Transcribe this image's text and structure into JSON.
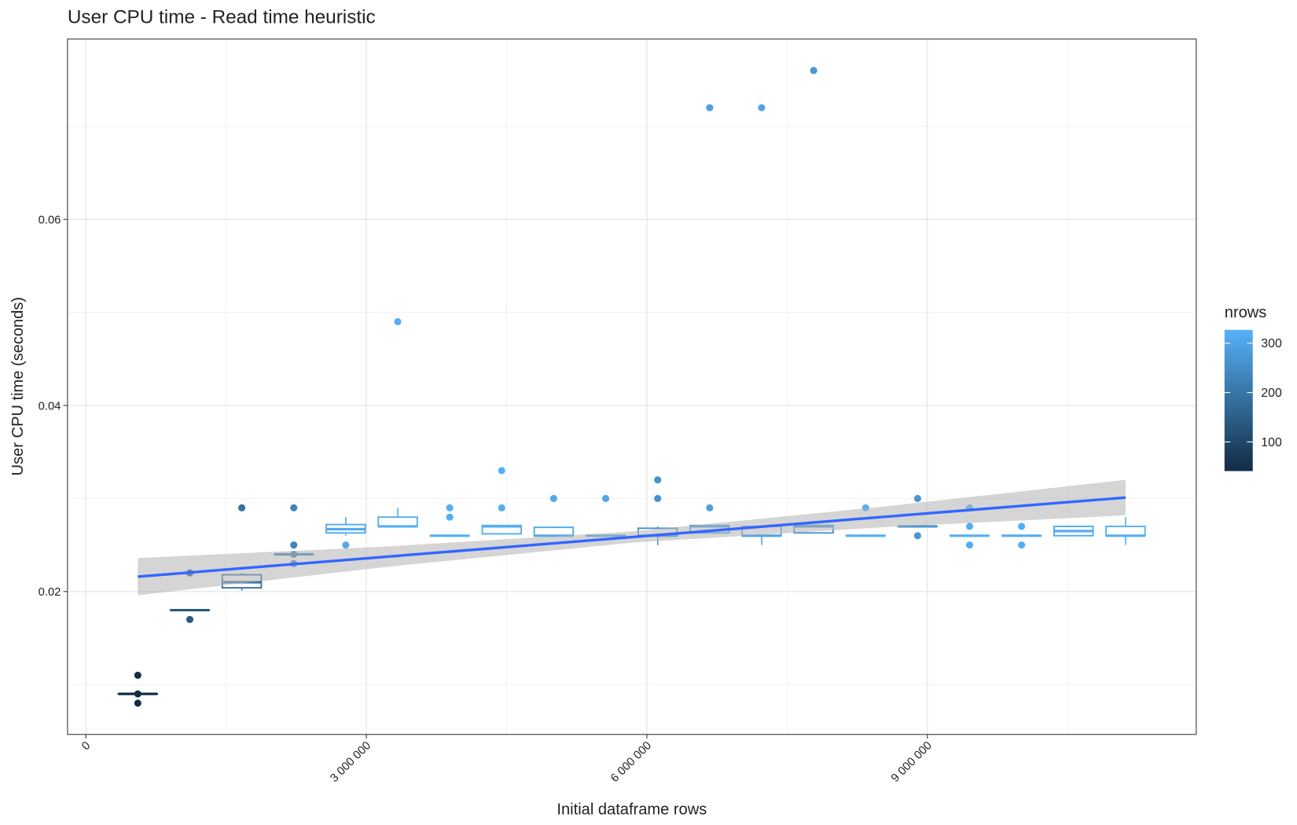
{
  "chart_data": {
    "type": "boxplot",
    "title": "User CPU time - Read time heuristic",
    "x_label": "Initial dataframe rows",
    "y_label": "User CPU time (seconds)",
    "xlim": [
      -196000,
      11876000
    ],
    "ylim": [
      0.00464,
      0.07938
    ],
    "xticks": [
      0,
      {
        "value": 3000000,
        "label": "3 000 000"
      },
      {
        "value": 6000000,
        "label": "6 000 000"
      },
      {
        "value": 9000000,
        "label": "9 000 000"
      }
    ],
    "yticks": [
      0.02,
      0.04,
      0.06
    ],
    "grid": true,
    "color_scale": {
      "title": "nrows",
      "lim": [
        41,
        327
      ],
      "ticks": [
        100,
        200,
        300
      ],
      "low": "#132B43",
      "high": "#56B1F7"
    },
    "boxes": [
      {
        "x": 556000,
        "nrows": 45,
        "whisker_low": 0.009,
        "q1": 0.009,
        "median": 0.009,
        "q3": 0.009,
        "whisker_high": 0.009,
        "outliers": [
          0.011,
          0.009,
          0.008
        ]
      },
      {
        "x": 1112000,
        "nrows": 140,
        "whisker_low": 0.018,
        "q1": 0.018,
        "median": 0.018,
        "q3": 0.018,
        "whisker_high": 0.018,
        "outliers": [
          0.022,
          0.017
        ]
      },
      {
        "x": 1668000,
        "nrows": 190,
        "whisker_low": 0.0201,
        "q1": 0.0204,
        "median": 0.021,
        "q3": 0.0218,
        "whisker_high": 0.022,
        "outliers": [
          0.029
        ]
      },
      {
        "x": 2224000,
        "nrows": 230,
        "whisker_low": 0.024,
        "q1": 0.024,
        "median": 0.024,
        "q3": 0.024,
        "whisker_high": 0.024,
        "outliers": [
          0.029,
          0.025,
          0.024,
          0.023
        ]
      },
      {
        "x": 2780000,
        "nrows": 315,
        "whisker_low": 0.026,
        "q1": 0.0263,
        "median": 0.0267,
        "q3": 0.0272,
        "whisker_high": 0.028,
        "outliers": [
          0.025
        ]
      },
      {
        "x": 3336000,
        "nrows": 322,
        "whisker_low": 0.027,
        "q1": 0.027,
        "median": 0.027,
        "q3": 0.028,
        "whisker_high": 0.029,
        "outliers": [
          0.049
        ]
      },
      {
        "x": 3892000,
        "nrows": 320,
        "whisker_low": 0.026,
        "q1": 0.026,
        "median": 0.026,
        "q3": 0.026,
        "whisker_high": 0.026,
        "outliers": [
          0.029,
          0.028
        ]
      },
      {
        "x": 4448000,
        "nrows": 320,
        "whisker_low": 0.0262,
        "q1": 0.0262,
        "median": 0.027,
        "q3": 0.0271,
        "whisker_high": 0.0271,
        "outliers": [
          0.033,
          0.029
        ]
      },
      {
        "x": 5004000,
        "nrows": 310,
        "whisker_low": 0.026,
        "q1": 0.026,
        "median": 0.026,
        "q3": 0.0269,
        "whisker_high": 0.027,
        "outliers": [
          0.03
        ]
      },
      {
        "x": 5560000,
        "nrows": 300,
        "whisker_low": 0.026,
        "q1": 0.026,
        "median": 0.026,
        "q3": 0.026,
        "whisker_high": 0.026,
        "outliers": [
          0.03
        ]
      },
      {
        "x": 6116000,
        "nrows": 260,
        "whisker_low": 0.025,
        "q1": 0.026,
        "median": 0.026,
        "q3": 0.0268,
        "whisker_high": 0.027,
        "outliers": [
          0.032,
          0.03
        ]
      },
      {
        "x": 6672000,
        "nrows": 290,
        "whisker_low": 0.0263,
        "q1": 0.0263,
        "median": 0.027,
        "q3": 0.0271,
        "whisker_high": 0.0271,
        "outliers": [
          0.072,
          0.029
        ]
      },
      {
        "x": 7228000,
        "nrows": 300,
        "whisker_low": 0.025,
        "q1": 0.026,
        "median": 0.026,
        "q3": 0.027,
        "whisker_high": 0.027,
        "outliers": [
          0.072
        ]
      },
      {
        "x": 7784000,
        "nrows": 270,
        "whisker_low": 0.0263,
        "q1": 0.0263,
        "median": 0.027,
        "q3": 0.0271,
        "whisker_high": 0.0271,
        "outliers": [
          0.076
        ]
      },
      {
        "x": 8340000,
        "nrows": 320,
        "whisker_low": 0.026,
        "q1": 0.026,
        "median": 0.026,
        "q3": 0.026,
        "whisker_high": 0.026,
        "outliers": [
          0.029
        ]
      },
      {
        "x": 8896000,
        "nrows": 270,
        "whisker_low": 0.027,
        "q1": 0.027,
        "median": 0.027,
        "q3": 0.027,
        "whisker_high": 0.027,
        "outliers": [
          0.03,
          0.026
        ]
      },
      {
        "x": 9452000,
        "nrows": 320,
        "whisker_low": 0.026,
        "q1": 0.026,
        "median": 0.026,
        "q3": 0.026,
        "whisker_high": 0.026,
        "outliers": [
          0.029,
          0.027,
          0.025
        ]
      },
      {
        "x": 10008000,
        "nrows": 320,
        "whisker_low": 0.026,
        "q1": 0.026,
        "median": 0.026,
        "q3": 0.026,
        "whisker_high": 0.026,
        "outliers": [
          0.027,
          0.025
        ]
      },
      {
        "x": 10564000,
        "nrows": 315,
        "whisker_low": 0.026,
        "q1": 0.026,
        "median": 0.0265,
        "q3": 0.027,
        "whisker_high": 0.027,
        "outliers": []
      },
      {
        "x": 11120000,
        "nrows": 320,
        "whisker_low": 0.025,
        "q1": 0.026,
        "median": 0.026,
        "q3": 0.027,
        "whisker_high": 0.028,
        "outliers": []
      }
    ],
    "smooth": {
      "color": "#3366FF",
      "band_color": "#b3b3b3",
      "x": [
        556000,
        3200000,
        5840000,
        8480000,
        11120000
      ],
      "y": [
        0.0216,
        0.02373,
        0.02585,
        0.02798,
        0.0301
      ],
      "lower": [
        0.0196,
        0.02263,
        0.02525,
        0.02688,
        0.0282
      ],
      "upper": [
        0.0236,
        0.02483,
        0.02645,
        0.02908,
        0.032
      ]
    }
  }
}
